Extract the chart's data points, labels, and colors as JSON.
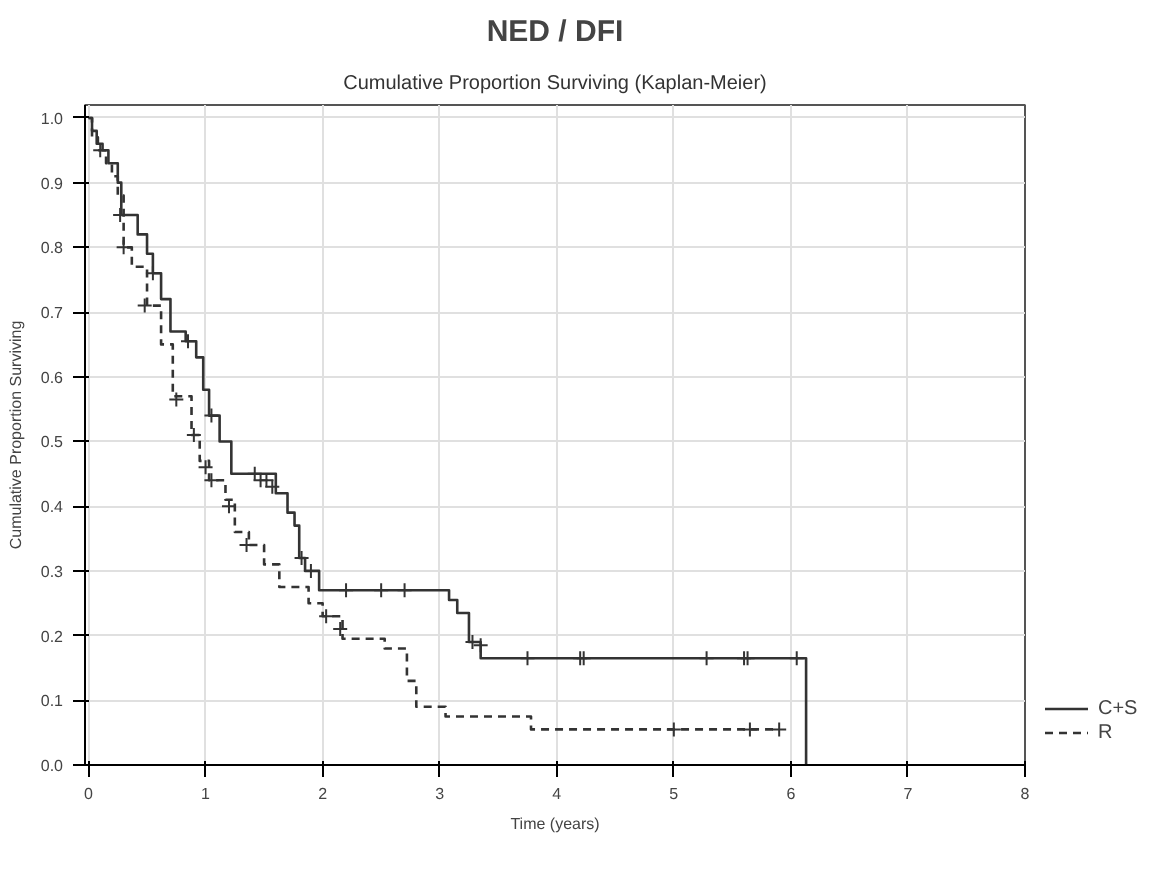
{
  "chart_data": {
    "type": "step",
    "title": "NED / DFI",
    "subtitle": "Cumulative Proportion Surviving (Kaplan-Meier)",
    "xlabel": "Time (years)",
    "ylabel": "Cumulative Proportion Surviving",
    "xlim": [
      -0.03,
      8
    ],
    "ylim": [
      0,
      1.02
    ],
    "xticks": [
      0,
      1,
      2,
      3,
      4,
      5,
      6,
      7,
      8
    ],
    "yticks": [
      {
        "value": 0,
        "label": "0.0"
      },
      {
        "value": 0.1,
        "label": "0.1"
      },
      {
        "value": 0.2,
        "label": "0.2"
      },
      {
        "value": 0.3,
        "label": "0.3"
      },
      {
        "value": 0.4,
        "label": "0.4"
      },
      {
        "value": 0.5,
        "label": "0.5"
      },
      {
        "value": 0.6,
        "label": "0.6"
      },
      {
        "value": 0.7,
        "label": "0.7"
      },
      {
        "value": 0.8,
        "label": "0.8"
      },
      {
        "value": 0.9,
        "label": "0.9"
      },
      {
        "value": 1,
        "label": "1.0"
      }
    ],
    "grid": true,
    "legend": "bottom right",
    "series": [
      {
        "name": "C+S",
        "color": "#333333",
        "line_style": "solid",
        "x": [
          0,
          0.03,
          0.07,
          0.12,
          0.17,
          0.25,
          0.28,
          0.42,
          0.5,
          0.55,
          0.62,
          0.7,
          0.83,
          0.92,
          0.98,
          1.03,
          1.12,
          1.22,
          1.6,
          1.7,
          1.76,
          1.8,
          1.85,
          1.97,
          3.08,
          3.15,
          3.25,
          3.35,
          6.13
        ],
        "values": [
          1.0,
          0.98,
          0.96,
          0.95,
          0.93,
          0.9,
          0.85,
          0.82,
          0.79,
          0.76,
          0.72,
          0.67,
          0.655,
          0.63,
          0.58,
          0.54,
          0.5,
          0.45,
          0.42,
          0.39,
          0.37,
          0.32,
          0.3,
          0.27,
          0.255,
          0.235,
          0.19,
          0.165,
          0.0
        ]
      },
      {
        "name": "R",
        "color": "#333333",
        "line_style": "dashed",
        "x": [
          0,
          0.03,
          0.08,
          0.15,
          0.2,
          0.25,
          0.3,
          0.37,
          0.5,
          0.62,
          0.72,
          0.88,
          0.95,
          1.03,
          1.17,
          1.25,
          1.37,
          1.5,
          1.63,
          1.88,
          2.0,
          2.17,
          2.53,
          2.72,
          2.8,
          3.05,
          3.78,
          5.9
        ],
        "values": [
          1.0,
          0.97,
          0.95,
          0.93,
          0.91,
          0.88,
          0.8,
          0.77,
          0.71,
          0.65,
          0.57,
          0.51,
          0.47,
          0.44,
          0.41,
          0.36,
          0.34,
          0.31,
          0.275,
          0.25,
          0.23,
          0.195,
          0.18,
          0.13,
          0.09,
          0.075,
          0.055,
          0.055
        ]
      },
      {
        "type": "scatter",
        "marker": "cross",
        "color": "#333333",
        "x": [
          0.1,
          0.27,
          0.55,
          0.85,
          1.05,
          1.42,
          1.47,
          1.52,
          1.57,
          1.82,
          1.9,
          2.2,
          2.5,
          2.7,
          3.28,
          3.35,
          3.75,
          4.2,
          4.23,
          5.28,
          5.6,
          5.63,
          6.05
        ],
        "values": [
          0.95,
          0.85,
          0.76,
          0.655,
          0.54,
          0.45,
          0.44,
          0.44,
          0.43,
          0.32,
          0.3,
          0.27,
          0.27,
          0.27,
          0.19,
          0.185,
          0.165,
          0.165,
          0.165,
          0.165,
          0.165,
          0.165,
          0.165
        ]
      },
      {
        "type": "scatter",
        "marker": "cross",
        "color": "#333333",
        "x": [
          0.3,
          0.48,
          0.75,
          0.9,
          1.0,
          1.05,
          1.2,
          1.35,
          2.03,
          2.15,
          5.0,
          5.65,
          5.9
        ],
        "values": [
          0.8,
          0.71,
          0.565,
          0.51,
          0.46,
          0.44,
          0.4,
          0.34,
          0.23,
          0.21,
          0.055,
          0.055,
          0.055
        ]
      }
    ]
  }
}
